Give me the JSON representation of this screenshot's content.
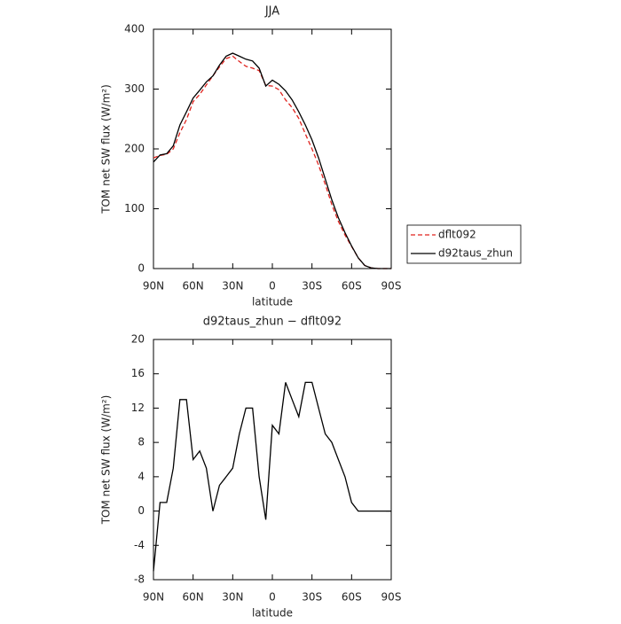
{
  "chart_data": [
    {
      "type": "line",
      "title": "JJA",
      "xlabel": "latitude",
      "ylabel": "TOM net SW flux (W/m²)",
      "x": [
        90,
        85,
        80,
        75,
        70,
        65,
        60,
        55,
        50,
        45,
        40,
        35,
        30,
        25,
        20,
        15,
        10,
        5,
        0,
        -5,
        -10,
        -15,
        -20,
        -25,
        -30,
        -35,
        -40,
        -45,
        -50,
        -55,
        -60,
        -65,
        -70,
        -75,
        -80,
        -85,
        -90
      ],
      "series": [
        {
          "name": "dflt092",
          "color": "#e0231e",
          "linestyle": "dashed",
          "values": [
            185,
            189,
            191,
            200,
            227,
            249,
            279,
            291,
            307,
            322,
            337,
            351,
            355,
            346,
            338,
            335,
            331,
            306,
            305,
            299,
            282,
            269,
            251,
            225,
            200,
            173,
            141,
            107,
            79,
            56,
            37,
            18,
            5,
            1,
            0,
            0,
            0
          ]
        },
        {
          "name": "d92taus_zhun",
          "color": "#000000",
          "linestyle": "solid",
          "values": [
            178,
            190,
            192,
            205,
            240,
            262,
            285,
            298,
            312,
            322,
            340,
            355,
            360,
            355,
            350,
            347,
            335,
            305,
            315,
            308,
            297,
            282,
            262,
            240,
            215,
            185,
            150,
            115,
            85,
            60,
            38,
            18,
            5,
            1,
            0,
            0,
            0
          ]
        }
      ],
      "xlim": [
        90,
        -90
      ],
      "xticks": [
        {
          "value": 90,
          "label": "90N"
        },
        {
          "value": 60,
          "label": "60N"
        },
        {
          "value": 30,
          "label": "30N"
        },
        0,
        {
          "value": -30,
          "label": "30S"
        },
        {
          "value": -60,
          "label": "60S"
        },
        {
          "value": -90,
          "label": "90S"
        }
      ],
      "ylim": [
        0,
        400
      ],
      "yticks": [
        0,
        100,
        200,
        300,
        400
      ],
      "legend": "right"
    },
    {
      "type": "line",
      "title": "d92taus_zhun − dflt092",
      "xlabel": "latitude",
      "ylabel": "TOM net SW flux (W/m²)",
      "x": [
        90,
        85,
        80,
        75,
        70,
        65,
        60,
        55,
        50,
        45,
        40,
        35,
        30,
        25,
        20,
        15,
        10,
        5,
        0,
        -5,
        -10,
        -15,
        -20,
        -25,
        -30,
        -35,
        -40,
        -45,
        -50,
        -55,
        -60,
        -65,
        -70,
        -75,
        -80,
        -85,
        -90
      ],
      "series": [
        {
          "color": "#000000",
          "linestyle": "solid",
          "values": [
            -7,
            1,
            1,
            5,
            13,
            13,
            6,
            7,
            5,
            0,
            3,
            4,
            5,
            9,
            12,
            12,
            4,
            -1,
            10,
            9,
            15,
            13,
            11,
            15,
            15,
            12,
            9,
            8,
            6,
            4,
            1,
            0,
            0,
            0,
            0,
            0,
            0
          ]
        }
      ],
      "xlim": [
        90,
        -90
      ],
      "xticks": [
        {
          "value": 90,
          "label": "90N"
        },
        {
          "value": 60,
          "label": "60N"
        },
        {
          "value": 30,
          "label": "30N"
        },
        0,
        {
          "value": -30,
          "label": "30S"
        },
        {
          "value": -60,
          "label": "60S"
        },
        {
          "value": -90,
          "label": "90S"
        }
      ],
      "ylim": [
        -8,
        20
      ],
      "yticks": [
        -8,
        -4,
        0,
        4,
        8,
        12,
        16,
        20
      ]
    }
  ]
}
